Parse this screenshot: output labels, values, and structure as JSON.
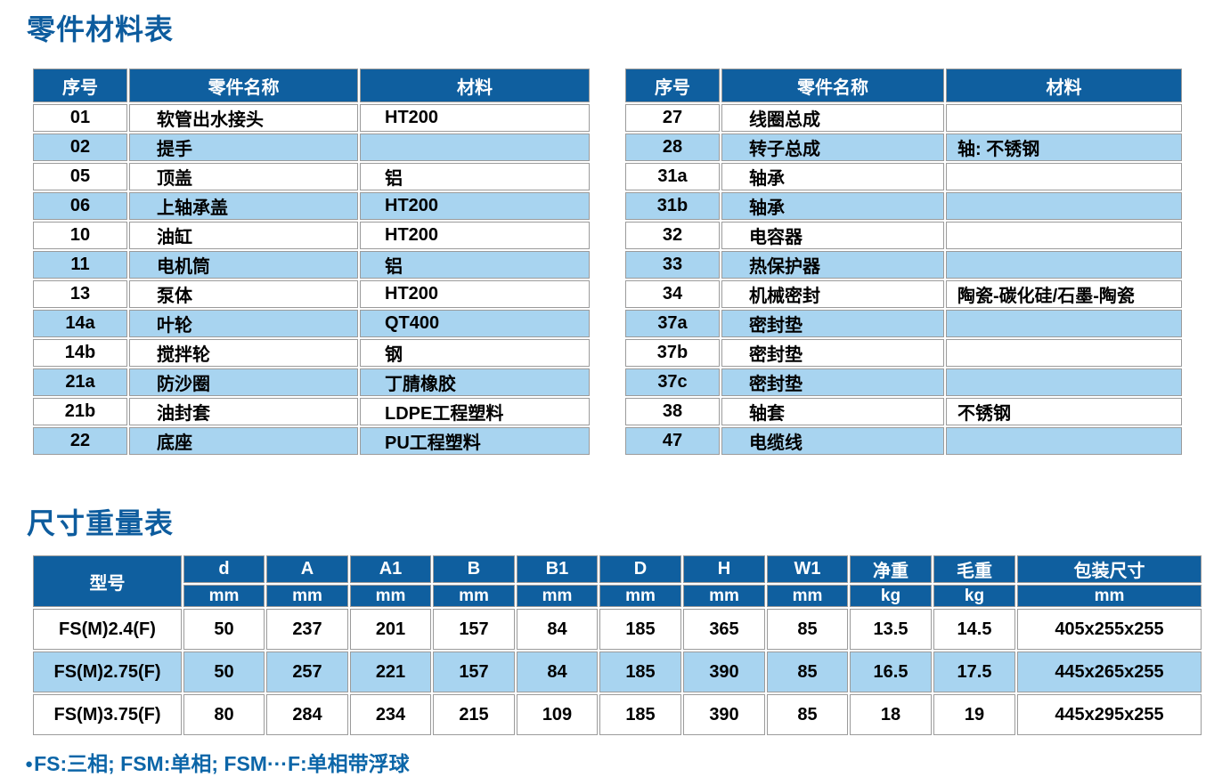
{
  "page": {
    "parts_title": "零件材料表",
    "size_title": "尺寸重量表",
    "footnote_bullet": "●",
    "footnote_text": "FS:三相; FSM:单相; FSM···F:单相带浮球"
  },
  "colors": {
    "header_bg": "#0f5f9f",
    "row_alt_bg": "#a8d4f0",
    "title_blue": "#0d5c9e",
    "footnote_blue": "#0c66a8",
    "grid_border": "#9b9b9b"
  },
  "parts_table": {
    "headers": {
      "no": "序号",
      "name": "零件名称",
      "material": "材料"
    },
    "left_rows": [
      {
        "no": "01",
        "name": "软管出水接头",
        "material": "HT200"
      },
      {
        "no": "02",
        "name": "提手",
        "material": ""
      },
      {
        "no": "05",
        "name": "顶盖",
        "material": "铝"
      },
      {
        "no": "06",
        "name": "上轴承盖",
        "material": "HT200"
      },
      {
        "no": "10",
        "name": "油缸",
        "material": "HT200"
      },
      {
        "no": "11",
        "name": "电机筒",
        "material": "铝"
      },
      {
        "no": "13",
        "name": "泵体",
        "material": "HT200"
      },
      {
        "no": "14a",
        "name": "叶轮",
        "material": "QT400"
      },
      {
        "no": "14b",
        "name": "搅拌轮",
        "material": "钢"
      },
      {
        "no": "21a",
        "name": "防沙圈",
        "material": "丁腈橡胶"
      },
      {
        "no": "21b",
        "name": "油封套",
        "material": "LDPE工程塑料"
      },
      {
        "no": "22",
        "name": "底座",
        "material": "PU工程塑料"
      }
    ],
    "right_rows": [
      {
        "no": "27",
        "name": "线圈总成",
        "material": ""
      },
      {
        "no": "28",
        "name": "转子总成",
        "material": "轴: 不锈钢"
      },
      {
        "no": "31a",
        "name": "轴承",
        "material": ""
      },
      {
        "no": "31b",
        "name": "轴承",
        "material": ""
      },
      {
        "no": "32",
        "name": "电容器",
        "material": ""
      },
      {
        "no": "33",
        "name": "热保护器",
        "material": ""
      },
      {
        "no": "34",
        "name": "机械密封",
        "material": "陶瓷-碳化硅/石墨-陶瓷"
      },
      {
        "no": "37a",
        "name": "密封垫",
        "material": ""
      },
      {
        "no": "37b",
        "name": "密封垫",
        "material": ""
      },
      {
        "no": "37c",
        "name": "密封垫",
        "material": ""
      },
      {
        "no": "38",
        "name": "轴套",
        "material": "不锈钢"
      },
      {
        "no": "47",
        "name": "电缆线",
        "material": ""
      }
    ]
  },
  "size_table": {
    "model_header": "型号",
    "columns": [
      {
        "label": "d",
        "unit": "mm"
      },
      {
        "label": "A",
        "unit": "mm"
      },
      {
        "label": "A1",
        "unit": "mm"
      },
      {
        "label": "B",
        "unit": "mm"
      },
      {
        "label": "B1",
        "unit": "mm"
      },
      {
        "label": "D",
        "unit": "mm"
      },
      {
        "label": "H",
        "unit": "mm"
      },
      {
        "label": "W1",
        "unit": "mm"
      },
      {
        "label": "净重",
        "unit": "kg"
      },
      {
        "label": "毛重",
        "unit": "kg"
      },
      {
        "label": "包装尺寸",
        "unit": "mm"
      }
    ],
    "rows": [
      {
        "model": "FS(M)2.4(F)",
        "values": [
          "50",
          "237",
          "201",
          "157",
          "84",
          "185",
          "365",
          "85",
          "13.5",
          "14.5",
          "405x255x255"
        ]
      },
      {
        "model": "FS(M)2.75(F)",
        "values": [
          "50",
          "257",
          "221",
          "157",
          "84",
          "185",
          "390",
          "85",
          "16.5",
          "17.5",
          "445x265x255"
        ]
      },
      {
        "model": "FS(M)3.75(F)",
        "values": [
          "80",
          "284",
          "234",
          "215",
          "109",
          "185",
          "390",
          "85",
          "18",
          "19",
          "445x295x255"
        ]
      }
    ]
  }
}
